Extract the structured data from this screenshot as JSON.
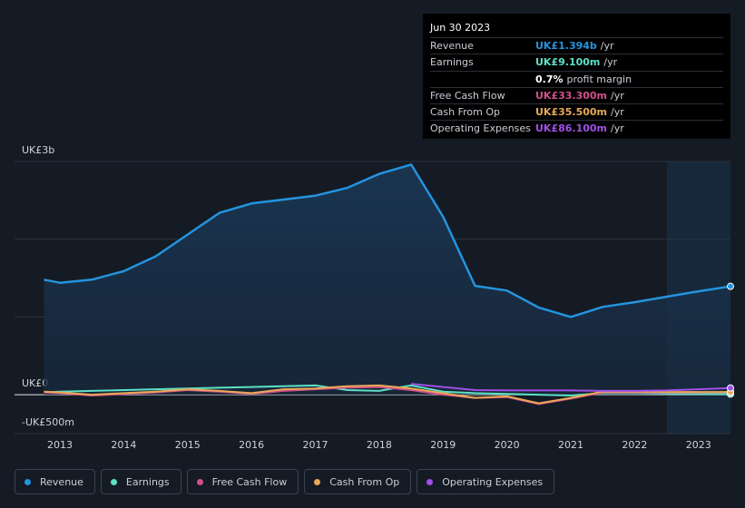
{
  "chart_data": {
    "type": "line",
    "x": [
      2012.75,
      2013.0,
      2013.5,
      2014.0,
      2014.5,
      2015.0,
      2015.5,
      2016.0,
      2016.5,
      2017.0,
      2017.5,
      2018.0,
      2018.5,
      2019.0,
      2019.5,
      2020.0,
      2020.5,
      2021.0,
      2021.5,
      2022.0,
      2022.5,
      2023.0,
      2023.5
    ],
    "series": [
      {
        "name": "Revenue",
        "color": "#2394df",
        "values": [
          1480,
          1440,
          1480,
          1590,
          1780,
          2060,
          2340,
          2460,
          2510,
          2560,
          2660,
          2840,
          2960,
          2290,
          1400,
          1340,
          1120,
          1000,
          1130,
          1190,
          1260,
          1330,
          1394
        ]
      },
      {
        "name": "Earnings",
        "color": "#5ce1c6",
        "values": [
          30,
          40,
          50,
          60,
          70,
          80,
          90,
          100,
          110,
          120,
          60,
          50,
          120,
          40,
          20,
          10,
          0,
          -10,
          20,
          20,
          15,
          10,
          9.1
        ]
      },
      {
        "name": "Free Cash Flow",
        "color": "#d0508b",
        "values": [
          30,
          20,
          -10,
          10,
          30,
          60,
          40,
          10,
          50,
          70,
          90,
          100,
          60,
          0,
          -40,
          -30,
          -120,
          -50,
          30,
          30,
          30,
          30,
          33.3
        ]
      },
      {
        "name": "Cash From Op",
        "color": "#e8a857",
        "values": [
          40,
          30,
          0,
          20,
          40,
          70,
          50,
          20,
          70,
          80,
          110,
          120,
          80,
          20,
          -40,
          -20,
          -110,
          -40,
          40,
          40,
          35,
          35,
          35.5
        ]
      },
      {
        "name": "Operating Expenses",
        "color": "#a050e8",
        "values": [
          null,
          null,
          null,
          null,
          null,
          null,
          null,
          null,
          null,
          null,
          null,
          null,
          140,
          100,
          60,
          55,
          55,
          55,
          50,
          50,
          55,
          70,
          86.1
        ]
      }
    ],
    "xlim": [
      2012.29,
      2023.5
    ],
    "xticks": [
      2013,
      2014,
      2015,
      2016,
      2017,
      2018,
      2019,
      2020,
      2021,
      2022,
      2023
    ],
    "ylim": [
      -500,
      3000
    ],
    "yticks": [
      {
        "value": 3000,
        "label": "UK£3b"
      },
      {
        "value": 2000,
        "label": null
      },
      {
        "value": 1000,
        "label": null
      },
      {
        "value": 0,
        "label": "UK£0"
      },
      {
        "value": -500,
        "label": "-UK£500m"
      }
    ],
    "grid": true
  },
  "tooltip": {
    "date": "Jun 30 2023",
    "rows": [
      {
        "label": "Revenue",
        "value": "UK£1.394b",
        "unit": "/yr",
        "color": "#2394df"
      },
      {
        "label": "Earnings",
        "value": "UK£9.100m",
        "unit": "/yr",
        "color": "#5ce1c6"
      },
      {
        "value": "0.7%",
        "unit": "profit margin",
        "color": "#ffffff"
      },
      {
        "label": "Free Cash Flow",
        "value": "UK£33.300m",
        "unit": "/yr",
        "color": "#d0508b"
      },
      {
        "label": "Cash From Op",
        "value": "UK£35.500m",
        "unit": "/yr",
        "color": "#e8a857"
      },
      {
        "label": "Operating Expenses",
        "value": "UK£86.100m",
        "unit": "/yr",
        "color": "#a050e8"
      }
    ]
  }
}
